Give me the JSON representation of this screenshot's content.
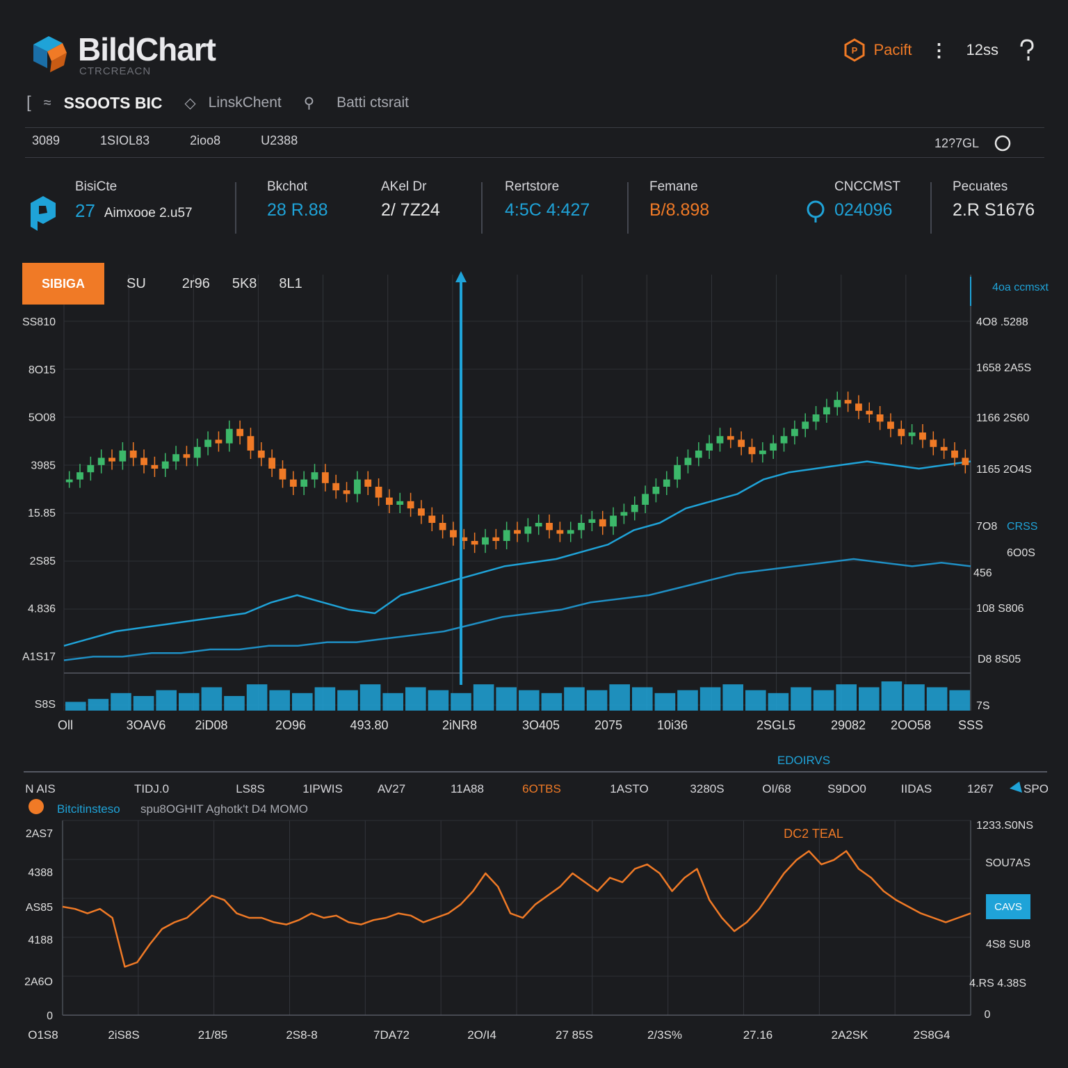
{
  "header": {
    "title": "BildChart",
    "subtitle": "CTRCREACN",
    "right_button_label": "Pacift",
    "right_time": "12ss",
    "more_icon": "kebab-icon",
    "help_icon": "help-icon"
  },
  "breadcrumb": {
    "pair": "SSOOTS BIC",
    "link1": "LinskChent",
    "link2": "Batti ctsrait"
  },
  "timeframes": {
    "items": [
      "3089",
      "1SIOL83",
      "2ioo8",
      "U2388"
    ],
    "right_label": "12?7GL"
  },
  "stats": [
    {
      "label": "BisiCte",
      "value": "27",
      "value2": "Aimxooe 2.u57",
      "color": "#1fa3d8"
    },
    {
      "label": "Bkchot",
      "value": "28 R.88",
      "color": "#1fa3d8"
    },
    {
      "label": "AKel Dr",
      "value": "2/ 7Z24",
      "color": "#e6e6e6"
    },
    {
      "label": "Rertstore",
      "value": "4:5C 4:427",
      "color": "#1fa3d8"
    },
    {
      "label": "Femane",
      "value": "B/8.898",
      "color": "#f07a26"
    },
    {
      "label": "CNCCMST",
      "value": "024096",
      "color": "#1fa3d8"
    },
    {
      "label": "Pecuates",
      "value": "2.R S1676",
      "color": "#e6e6e6"
    }
  ],
  "main_tabs": {
    "active": "SIBIGA",
    "items": [
      "SU",
      "2r96",
      "5K8",
      "8L1"
    ]
  },
  "chart_data": [
    {
      "type": "line",
      "title": "",
      "y_tick_labels_left": [
        "SS810",
        "8O15",
        "5O08",
        "3985",
        "15.85",
        "2S85",
        "4.836",
        "A1S17",
        "S8S"
      ],
      "y_tick_labels_right": [
        "4O8 .5288",
        "1658 2A5S",
        "1166 2S60",
        "1165 2O4S",
        "7O8",
        "CRSS",
        "6O0S",
        "456",
        "108 S806",
        "D8 8S05",
        "7S"
      ],
      "x_tick_labels": [
        "Oll",
        "3OAV6",
        "2iD08",
        "2O96",
        "493.80",
        "2iNR8",
        "3O405",
        "2075",
        "10i36",
        "2SGL5",
        "29082",
        "2OO58",
        "SSS"
      ],
      "annotation_right_top": "4oa ccmsxt",
      "ylim": [
        0,
        100
      ],
      "series": [
        {
          "type": "candlestick",
          "values": [
            52,
            54,
            56,
            58,
            57,
            60,
            58,
            56,
            55,
            57,
            59,
            58,
            61,
            63,
            62,
            66,
            64,
            60,
            58,
            55,
            52,
            50,
            52,
            54,
            51,
            49,
            48,
            52,
            50,
            47,
            45,
            46,
            44,
            42,
            40,
            38,
            36,
            35,
            34,
            36,
            35,
            38,
            37,
            39,
            40,
            38,
            37,
            38,
            40,
            41,
            39,
            42,
            43,
            45,
            48,
            50,
            52,
            56,
            58,
            60,
            62,
            64,
            63,
            61,
            59,
            60,
            62,
            64,
            66,
            68,
            70,
            72,
            74,
            73,
            71,
            70,
            68,
            66,
            64,
            65,
            63,
            61,
            60,
            58,
            56
          ]
        },
        {
          "type": "line",
          "values": [
            6,
            8,
            10,
            11,
            12,
            13,
            14,
            15,
            18,
            20,
            18,
            16,
            15,
            20,
            22,
            24,
            26,
            28,
            29,
            30,
            32,
            34,
            38,
            40,
            44,
            46,
            48,
            52,
            54,
            55,
            56,
            57,
            56,
            55,
            56,
            57
          ]
        },
        {
          "type": "line",
          "values": [
            2,
            3,
            3,
            4,
            4,
            5,
            5,
            6,
            6,
            7,
            7,
            8,
            9,
            10,
            12,
            14,
            15,
            16,
            18,
            19,
            20,
            22,
            24,
            26,
            27,
            28,
            29,
            30,
            29,
            28,
            29,
            28
          ]
        },
        {
          "type": "bar",
          "name": "volume",
          "values": [
            3,
            4,
            6,
            5,
            7,
            6,
            8,
            5,
            9,
            7,
            6,
            8,
            7,
            9,
            6,
            8,
            7,
            6,
            9,
            8,
            7,
            6,
            8,
            7,
            9,
            8,
            6,
            7,
            8,
            9,
            7,
            6,
            8,
            7,
            9,
            8,
            10,
            9,
            8,
            7
          ]
        }
      ]
    },
    {
      "type": "line",
      "title": "DC2 TEAL",
      "legend": "Bitcitinsteso",
      "legend_sub": "spu8OGHIT Aghotk't D4 MOMO",
      "header_items": [
        "N AIS",
        "TIDJ.0",
        "LS8S",
        "1IPWIS",
        "AV27",
        "11A88",
        "6OTBS",
        "1ASTO",
        "3280S",
        "OI/68",
        "S9DO0",
        "IIDAS",
        "1267",
        "SPO"
      ],
      "section_label": "EDOIRVS",
      "y_tick_labels_left": [
        "2AS7",
        "4388",
        "AS85",
        "4188",
        "2A6O",
        "0"
      ],
      "y_tick_labels_right": [
        "1233.S0NS",
        "SOU7AS",
        "CAVS",
        "4S8 SU8",
        "4.RS 4.38S",
        "0"
      ],
      "x_tick_labels": [
        "O1S8",
        "2iS8S",
        "21/85",
        "2S8-8",
        "7DA72",
        "2O/I4",
        "27 85S",
        "2/3S%",
        "27.16",
        "2A2SK",
        "2S8G4"
      ],
      "ylim": [
        0,
        100
      ],
      "series": [
        {
          "name": "DC2 TEAL",
          "values": [
            55,
            54,
            52,
            54,
            50,
            28,
            30,
            38,
            45,
            48,
            50,
            55,
            60,
            58,
            52,
            50,
            50,
            48,
            47,
            49,
            52,
            50,
            51,
            48,
            47,
            49,
            50,
            52,
            51,
            48,
            50,
            52,
            56,
            62,
            70,
            64,
            52,
            50,
            56,
            60,
            64,
            70,
            66,
            62,
            68,
            66,
            72,
            74,
            70,
            62,
            68,
            72,
            58,
            50,
            44,
            48,
            54,
            62,
            70,
            76,
            80,
            74,
            76,
            80,
            72,
            68,
            62,
            58,
            55,
            52,
            50,
            48,
            50,
            52
          ]
        }
      ]
    }
  ]
}
